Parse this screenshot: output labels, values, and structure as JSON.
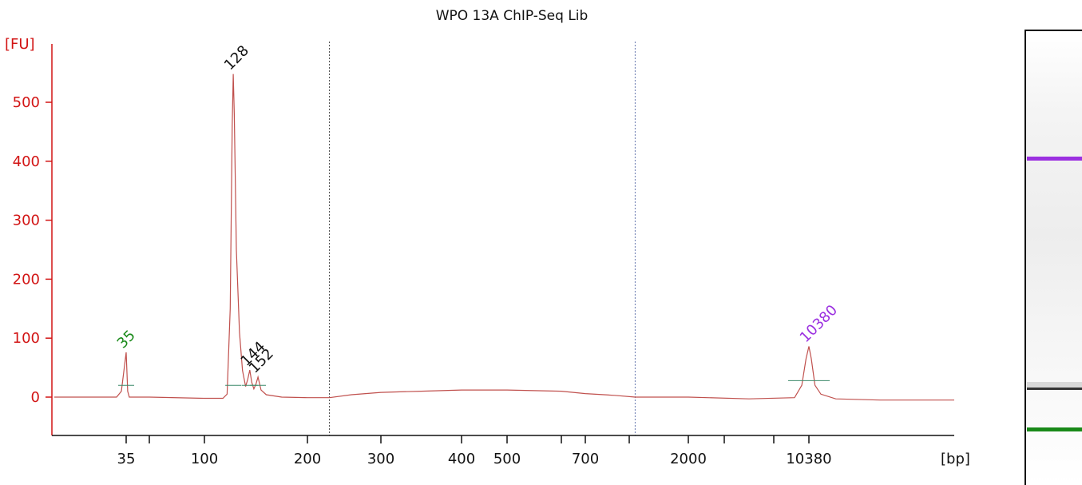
{
  "chart_data": {
    "type": "line",
    "title": "WPO 13A ChIP-Seq Lib",
    "ylabel": "[FU]",
    "xlabel": "[bp]",
    "ylim": [
      -60,
      610
    ],
    "yticks": [
      0,
      100,
      200,
      300,
      400,
      500
    ],
    "x_ticks": [
      {
        "label": "35",
        "bp": 35
      },
      {
        "label": "",
        "bp": 50
      },
      {
        "label": "100",
        "bp": 100
      },
      {
        "label": "200",
        "bp": 200
      },
      {
        "label": "300",
        "bp": 300
      },
      {
        "label": "400",
        "bp": 400
      },
      {
        "label": "500",
        "bp": 500
      },
      {
        "label": "",
        "bp": 600
      },
      {
        "label": "700",
        "bp": 700
      },
      {
        "label": "",
        "bp": 1000
      },
      {
        "label": "2000",
        "bp": 2000
      },
      {
        "label": "",
        "bp": 3000
      },
      {
        "label": "",
        "bp": 7000
      },
      {
        "label": "10380",
        "bp": 10380
      }
    ],
    "region_markers_bp": [
      230,
      1100
    ],
    "peaks": [
      {
        "label": "35",
        "bp": 35,
        "fu": 76,
        "color": "#1a8a1a"
      },
      {
        "label": "128",
        "bp": 128,
        "fu": 548,
        "color": "#111111"
      },
      {
        "label": "144",
        "bp": 144,
        "fu": 46,
        "color": "#111111"
      },
      {
        "label": "152",
        "bp": 152,
        "fu": 34,
        "color": "#111111"
      },
      {
        "label": "10380",
        "bp": 10380,
        "fu": 86,
        "color": "#9b30e0"
      }
    ],
    "series": [
      {
        "color": "#c0504d",
        "points": [
          [
            20,
            0
          ],
          [
            33,
            0
          ],
          [
            34,
            10
          ],
          [
            35,
            76
          ],
          [
            36,
            10
          ],
          [
            37,
            0
          ],
          [
            50,
            0
          ],
          [
            100,
            -2
          ],
          [
            118,
            -2
          ],
          [
            122,
            5
          ],
          [
            125,
            150
          ],
          [
            127,
            460
          ],
          [
            128,
            548
          ],
          [
            129,
            480
          ],
          [
            131,
            250
          ],
          [
            134,
            110
          ],
          [
            137,
            45
          ],
          [
            140,
            18
          ],
          [
            142,
            30
          ],
          [
            144,
            46
          ],
          [
            146,
            25
          ],
          [
            148,
            14
          ],
          [
            150,
            22
          ],
          [
            152,
            34
          ],
          [
            155,
            12
          ],
          [
            160,
            4
          ],
          [
            175,
            0
          ],
          [
            200,
            -1
          ],
          [
            230,
            -1
          ],
          [
            260,
            4
          ],
          [
            300,
            8
          ],
          [
            350,
            10
          ],
          [
            400,
            12
          ],
          [
            500,
            12
          ],
          [
            600,
            10
          ],
          [
            700,
            6
          ],
          [
            900,
            3
          ],
          [
            1100,
            0
          ],
          [
            2000,
            0
          ],
          [
            5000,
            -3
          ],
          [
            9000,
            -1
          ],
          [
            9700,
            20
          ],
          [
            10100,
            65
          ],
          [
            10380,
            86
          ],
          [
            10700,
            65
          ],
          [
            11200,
            20
          ],
          [
            12000,
            5
          ],
          [
            14000,
            -3
          ],
          [
            20000,
            -5
          ],
          [
            30000,
            -5
          ]
        ]
      }
    ]
  },
  "gel": {
    "upper_marker_color": "#9b30e0",
    "lower_marker_color": "#1a8a1a",
    "band_color": "#333333"
  }
}
